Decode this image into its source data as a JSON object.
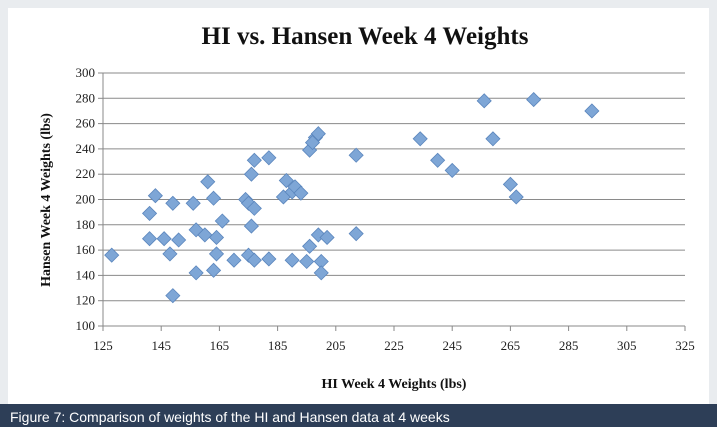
{
  "chart_data": {
    "type": "scatter",
    "title": "HI vs. Hansen Week 4 Weights",
    "xlabel": "HI Week 4 Weights (lbs)",
    "ylabel": "Hansen Week 4 Weights (lbs)",
    "caption": "Figure 7: Comparison of weights of the HI and Hansen data at 4 weeks",
    "color": "#7ea6d6",
    "grid": true,
    "xlim": [
      125,
      325
    ],
    "xticks": [
      125,
      145,
      165,
      185,
      205,
      225,
      245,
      265,
      285,
      305,
      325
    ],
    "ylim": [
      100,
      300
    ],
    "yticks": [
      100,
      120,
      140,
      160,
      180,
      200,
      220,
      240,
      260,
      280,
      300
    ],
    "x": [
      128,
      143,
      141,
      141,
      146,
      149,
      148,
      149,
      151,
      156,
      157,
      160,
      157,
      161,
      163,
      166,
      164,
      164,
      163,
      170,
      174,
      175,
      177,
      176,
      177,
      182,
      176,
      175,
      177,
      182,
      187,
      188,
      190,
      191,
      193,
      196,
      198,
      199,
      197,
      190,
      196,
      195,
      199,
      200,
      200,
      202,
      212,
      212,
      234,
      240,
      245,
      256,
      259,
      265,
      267,
      273,
      293
    ],
    "values": [
      156,
      203,
      189,
      169,
      169,
      197,
      157,
      124,
      168,
      197,
      176,
      172,
      142,
      214,
      201,
      183,
      170,
      157,
      144,
      152,
      200,
      197,
      193,
      220,
      231,
      233,
      179,
      156,
      152,
      153,
      202,
      215,
      206,
      210,
      205,
      239,
      249,
      252,
      245,
      152,
      163,
      151,
      172,
      151,
      142,
      170,
      235,
      173,
      248,
      231,
      223,
      278,
      248,
      212,
      202,
      279,
      270
    ]
  }
}
